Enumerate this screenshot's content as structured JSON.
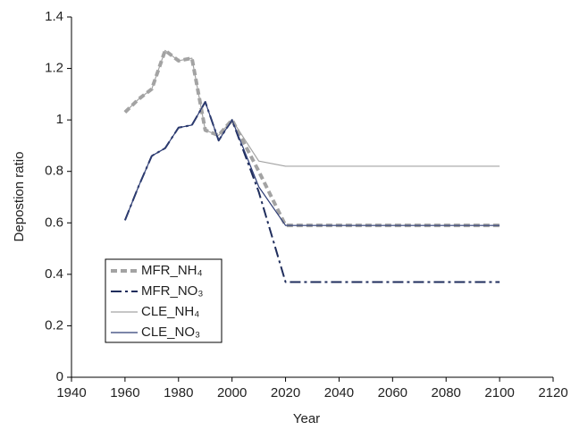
{
  "chart_data": {
    "type": "line",
    "xlabel": "Year",
    "ylabel": "Depostion ratio",
    "x": [
      1960,
      1965,
      1970,
      1975,
      1980,
      1985,
      1990,
      1995,
      2000,
      2010,
      2020,
      2100
    ],
    "series": [
      {
        "name": "MFR_NH₄",
        "color": "#a3a3a3",
        "linestyle": "dashed",
        "linewidth": 4,
        "values": [
          1.03,
          1.08,
          1.12,
          1.27,
          1.23,
          1.24,
          0.96,
          0.94,
          1.0,
          0.8,
          0.59,
          0.59
        ]
      },
      {
        "name": "MFR_NO₃",
        "color": "#1f2d5c",
        "linestyle": "dashdot",
        "linewidth": 2,
        "values": [
          0.61,
          0.74,
          0.86,
          0.89,
          0.97,
          0.98,
          1.07,
          0.92,
          1.0,
          0.72,
          0.37,
          0.37
        ]
      },
      {
        "name": "CLE_NH₄",
        "color": "#a3a3a3",
        "linestyle": "solid",
        "linewidth": 1.2,
        "values": [
          1.03,
          1.08,
          1.12,
          1.27,
          1.23,
          1.24,
          0.96,
          0.94,
          1.0,
          0.84,
          0.82,
          0.82
        ]
      },
      {
        "name": "CLE_NO₃",
        "color": "#2e3d75",
        "linestyle": "solid",
        "linewidth": 1.2,
        "values": [
          0.61,
          0.74,
          0.86,
          0.89,
          0.97,
          0.98,
          1.07,
          0.92,
          1.0,
          0.74,
          0.59,
          0.59
        ]
      }
    ],
    "xlim": [
      1940,
      2120
    ],
    "xticks": [
      1940,
      1960,
      1980,
      2000,
      2020,
      2040,
      2060,
      2080,
      2100,
      2120
    ],
    "ylim": [
      0,
      1.4
    ],
    "yticks": [
      0,
      0.2,
      0.4,
      0.6,
      0.8,
      1,
      1.2,
      1.4
    ],
    "grid": false,
    "legend": "lower-left"
  }
}
